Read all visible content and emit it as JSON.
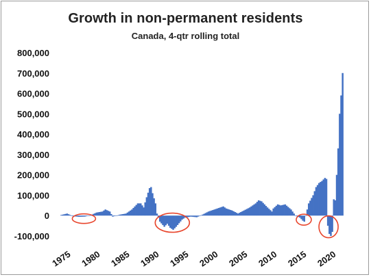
{
  "chart_data": {
    "type": "bar",
    "title": "Growth in non-permanent residents",
    "subtitle": "Canada, 4-qtr rolling total",
    "xlabel": "",
    "ylabel": "",
    "ylim": [
      -100000,
      800000
    ],
    "y_ticks": [
      -100000,
      0,
      100000,
      200000,
      300000,
      400000,
      500000,
      600000,
      700000,
      800000
    ],
    "y_tick_labels": [
      "-100,000",
      "0",
      "100,000",
      "200,000",
      "300,000",
      "400,000",
      "500,000",
      "600,000",
      "700,000",
      "800,000"
    ],
    "x_ticks": [
      "1975",
      "1980",
      "1985",
      "1990",
      "1995",
      "2000",
      "2005",
      "2010",
      "2015",
      "2020"
    ],
    "xlim": [
      1975,
      2023.75
    ],
    "grid": false,
    "legend": "none",
    "bar_color": "#4472c4",
    "highlight_color": "#e8452c",
    "annotations": [
      {
        "type": "ellipse",
        "year_center": 1979.0,
        "value_center": -15000
      },
      {
        "type": "ellipse",
        "year_center": 1994.0,
        "value_center": -35000
      },
      {
        "type": "ellipse",
        "year_center": 2016.3,
        "value_center": -20000
      },
      {
        "type": "ellipse",
        "year_center": 2020.5,
        "value_center": -55000
      }
    ],
    "series": [
      {
        "keyframes": [
          [
            1975.0,
            3000
          ],
          [
            1976.0,
            10000
          ],
          [
            1977.0,
            -3000
          ],
          [
            1978.0,
            -6000
          ],
          [
            1979.0,
            -5000
          ],
          [
            1980.0,
            2000
          ],
          [
            1981.0,
            15000
          ],
          [
            1982.0,
            20000
          ],
          [
            1982.5,
            30000
          ],
          [
            1983.25,
            20000
          ],
          [
            1983.75,
            -5000
          ],
          [
            1985.0,
            5000
          ],
          [
            1986.0,
            10000
          ],
          [
            1987.0,
            30000
          ],
          [
            1988.0,
            60000
          ],
          [
            1988.5,
            60000
          ],
          [
            1989.0,
            40000
          ],
          [
            1989.5,
            90000
          ],
          [
            1990.0,
            135000
          ],
          [
            1990.25,
            140000
          ],
          [
            1990.5,
            110000
          ],
          [
            1991.0,
            60000
          ],
          [
            1991.25,
            10000
          ],
          [
            1991.75,
            -30000
          ],
          [
            1992.5,
            -55000
          ],
          [
            1993.0,
            -40000
          ],
          [
            1993.5,
            -60000
          ],
          [
            1994.0,
            -70000
          ],
          [
            1994.5,
            -55000
          ],
          [
            1995.5,
            -20000
          ],
          [
            1996.0,
            -10000
          ],
          [
            1997.0,
            -5000
          ],
          [
            1998.0,
            -8000
          ],
          [
            1999.0,
            5000
          ],
          [
            2000.0,
            20000
          ],
          [
            2001.0,
            30000
          ],
          [
            2002.0,
            40000
          ],
          [
            2002.5,
            45000
          ],
          [
            2003.0,
            35000
          ],
          [
            2004.0,
            25000
          ],
          [
            2005.0,
            10000
          ],
          [
            2006.0,
            25000
          ],
          [
            2007.0,
            40000
          ],
          [
            2008.0,
            60000
          ],
          [
            2008.5,
            75000
          ],
          [
            2009.0,
            70000
          ],
          [
            2010.0,
            40000
          ],
          [
            2010.75,
            20000
          ],
          [
            2011.0,
            35000
          ],
          [
            2011.75,
            55000
          ],
          [
            2012.25,
            50000
          ],
          [
            2013.0,
            55000
          ],
          [
            2014.0,
            30000
          ],
          [
            2014.75,
            0
          ],
          [
            2015.5,
            -10000
          ],
          [
            2016.0,
            -25000
          ],
          [
            2016.25,
            -30000
          ],
          [
            2016.75,
            30000
          ],
          [
            2017.0,
            60000
          ],
          [
            2017.75,
            100000
          ],
          [
            2018.25,
            140000
          ],
          [
            2018.75,
            160000
          ],
          [
            2019.25,
            170000
          ],
          [
            2019.75,
            185000
          ],
          [
            2020.0,
            180000
          ],
          [
            2020.25,
            -50000
          ],
          [
            2020.5,
            -90000
          ],
          [
            2020.75,
            -100000
          ],
          [
            2021.0,
            -80000
          ],
          [
            2021.25,
            80000
          ],
          [
            2021.5,
            75000
          ],
          [
            2021.75,
            200000
          ],
          [
            2022.0,
            330000
          ],
          [
            2022.25,
            500000
          ],
          [
            2022.5,
            590000
          ],
          [
            2022.75,
            700000
          ]
        ]
      }
    ]
  }
}
